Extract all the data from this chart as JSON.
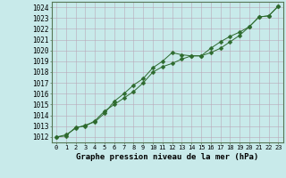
{
  "series1": {
    "x": [
      0,
      1,
      2,
      3,
      4,
      5,
      6,
      7,
      8,
      9,
      10,
      11,
      12,
      13,
      14,
      15,
      16,
      17,
      18,
      19,
      20,
      21,
      22,
      23
    ],
    "y": [
      1012.0,
      1012.2,
      1012.8,
      1013.1,
      1013.4,
      1014.2,
      1015.3,
      1016.0,
      1016.8,
      1017.4,
      1018.4,
      1019.0,
      1019.8,
      1019.6,
      1019.5,
      1019.5,
      1019.8,
      1020.2,
      1020.8,
      1021.4,
      1022.2,
      1023.1,
      1023.2,
      1024.1
    ]
  },
  "series2": {
    "x": [
      0,
      1,
      2,
      3,
      4,
      5,
      6,
      7,
      8,
      9,
      10,
      11,
      12,
      13,
      14,
      15,
      16,
      17,
      18,
      19,
      20,
      21,
      22,
      23
    ],
    "y": [
      1012.0,
      1012.1,
      1012.9,
      1013.0,
      1013.5,
      1014.4,
      1015.0,
      1015.6,
      1016.2,
      1017.0,
      1018.0,
      1018.5,
      1018.8,
      1019.2,
      1019.5,
      1019.5,
      1020.2,
      1020.8,
      1021.3,
      1021.7,
      1022.2,
      1023.1,
      1023.2,
      1024.1
    ]
  },
  "line_color": "#2d6a2d",
  "marker": "D",
  "markersize": 2.5,
  "background_color": "#c8eaea",
  "grid_color": "#b8a8b8",
  "ylabel_values": [
    1012,
    1013,
    1014,
    1015,
    1016,
    1017,
    1018,
    1019,
    1020,
    1021,
    1022,
    1023,
    1024
  ],
  "xlabel": "Graphe pression niveau de la mer (hPa)",
  "ylim": [
    1011.5,
    1024.5
  ],
  "xlim": [
    -0.5,
    23.5
  ],
  "xlabel_fontsize": 6.5,
  "tick_fontsize": 5.5,
  "xtick_fontsize": 5.0
}
